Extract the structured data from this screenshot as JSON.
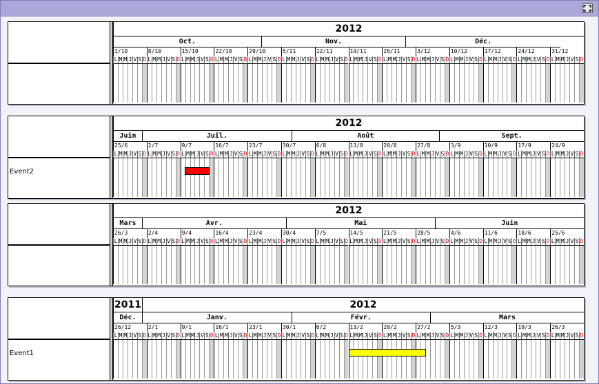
{
  "window": {
    "maximize_icon": "maximize-icon"
  },
  "day_letters": [
    "L",
    "M",
    "M",
    "J",
    "V",
    "S",
    "D"
  ],
  "colors": {
    "titlebar": "#a9a8d8",
    "sunday_text": "#e00000",
    "sunday_fill": "#d3d3d3",
    "event2": "#ff0000",
    "event1": "#ffff00"
  },
  "panels": [
    {
      "rows": [
        ""
      ],
      "years": [
        {
          "label": "2012",
          "span": [
            0,
            14
          ]
        }
      ],
      "months": [
        {
          "label": "Oct.",
          "span": [
            0,
            4.4
          ]
        },
        {
          "label": "Nov.",
          "span": [
            4.4,
            8.7
          ]
        },
        {
          "label": "Déc.",
          "span": [
            8.7,
            13.3
          ]
        }
      ],
      "weeks": [
        "1/10",
        "8/10",
        "15/10",
        "22/10",
        "29/10",
        "5/11",
        "12/11",
        "19/11",
        "26/11",
        "3/12",
        "10/12",
        "17/12",
        "24/12",
        "31/12"
      ],
      "events": []
    },
    {
      "rows": [
        "Event2"
      ],
      "years": [
        {
          "label": "2012",
          "span": [
            0,
            14
          ]
        }
      ],
      "months": [
        {
          "label": "Juin",
          "span": [
            0,
            0.86
          ]
        },
        {
          "label": "Juil.",
          "span": [
            0.86,
            5.3
          ]
        },
        {
          "label": "Août",
          "span": [
            5.3,
            9.7
          ]
        },
        {
          "label": "Sept.",
          "span": [
            9.7,
            14
          ]
        }
      ],
      "weeks": [
        "25/6",
        "2/7",
        "9/7",
        "16/7",
        "23/7",
        "30/7",
        "6/8",
        "13/8",
        "20/8",
        "27/8",
        "3/9",
        "10/9",
        "17/9",
        "24/9"
      ],
      "events": [
        {
          "row": 0,
          "start": 2.14,
          "end": 2.86,
          "color": "#ff0000"
        }
      ]
    },
    {
      "rows": [
        ""
      ],
      "years": [
        {
          "label": "2012",
          "span": [
            0,
            14
          ]
        }
      ],
      "months": [
        {
          "label": "Mars",
          "span": [
            0,
            0.86
          ]
        },
        {
          "label": "Avr.",
          "span": [
            0.86,
            5.14
          ]
        },
        {
          "label": "Mai",
          "span": [
            5.14,
            9.57
          ]
        },
        {
          "label": "Juin",
          "span": [
            9.57,
            14
          ]
        }
      ],
      "weeks": [
        "26/3",
        "2/4",
        "9/4",
        "16/4",
        "23/4",
        "30/4",
        "7/5",
        "14/5",
        "21/5",
        "28/5",
        "4/6",
        "11/6",
        "18/6",
        "25/6"
      ],
      "events": []
    },
    {
      "rows": [
        "Event1"
      ],
      "years": [
        {
          "label": "2011",
          "span": [
            0,
            0.86
          ]
        },
        {
          "label": "2012",
          "span": [
            0.86,
            14
          ]
        }
      ],
      "months": [
        {
          "label": "Déc.",
          "span": [
            0,
            0.86
          ]
        },
        {
          "label": "Janv.",
          "span": [
            0.86,
            5.3
          ]
        },
        {
          "label": "Févr.",
          "span": [
            5.3,
            9.43
          ]
        },
        {
          "label": "Mars",
          "span": [
            9.43,
            14
          ]
        }
      ],
      "weeks": [
        "26/12",
        "2/1",
        "9/1",
        "16/1",
        "23/1",
        "30/1",
        "6/2",
        "13/2",
        "20/2",
        "27/2",
        "5/3",
        "12/3",
        "19/3",
        "26/3"
      ],
      "events": [
        {
          "row": 0,
          "start": 7.0,
          "end": 9.3,
          "color": "#ffff00"
        }
      ]
    }
  ]
}
